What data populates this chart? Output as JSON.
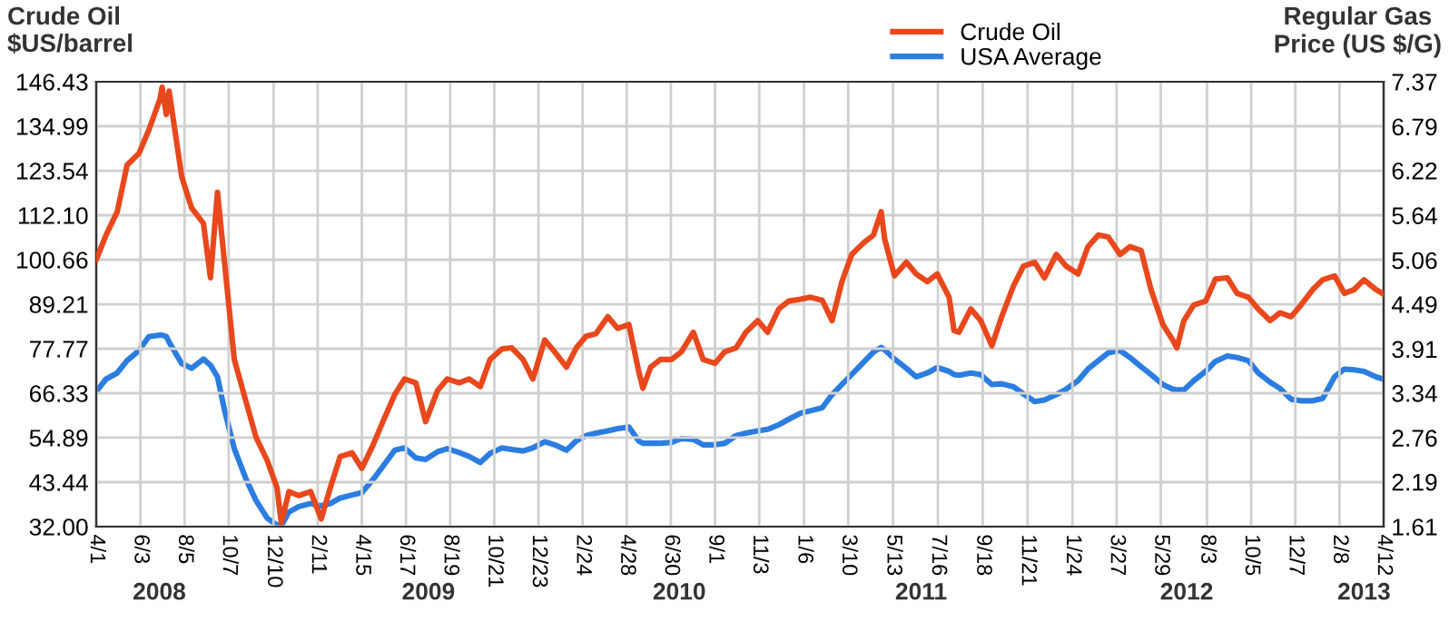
{
  "chart_data": {
    "type": "line",
    "ylabel": "Crude Oil\n$US/barrel",
    "y2label": "Regular Gas\nPrice (US $/G)",
    "x": [
      "2008-04-01",
      "2008-04-15",
      "2008-05-01",
      "2008-05-15",
      "2008-06-01",
      "2008-06-15",
      "2008-07-01",
      "2008-07-04",
      "2008-07-10",
      "2008-07-14",
      "2008-08-01",
      "2008-08-15",
      "2008-09-01",
      "2008-09-11",
      "2008-09-21",
      "2008-10-01",
      "2008-10-15",
      "2008-11-01",
      "2008-11-15",
      "2008-12-01",
      "2008-12-15",
      "2008-12-21",
      "2009-01-01",
      "2009-01-15",
      "2009-02-01",
      "2009-02-16",
      "2009-03-01",
      "2009-03-15",
      "2009-04-01",
      "2009-04-15",
      "2009-05-01",
      "2009-05-15",
      "2009-06-01",
      "2009-06-15",
      "2009-07-01",
      "2009-07-15",
      "2009-08-01",
      "2009-08-15",
      "2009-09-01",
      "2009-09-15",
      "2009-10-01",
      "2009-10-15",
      "2009-11-01",
      "2009-11-15",
      "2009-12-01",
      "2009-12-15",
      "2010-01-01",
      "2010-01-15",
      "2010-02-01",
      "2010-02-15",
      "2010-03-01",
      "2010-03-15",
      "2010-04-01",
      "2010-04-15",
      "2010-05-01",
      "2010-05-15",
      "2010-05-21",
      "2010-06-01",
      "2010-06-15",
      "2010-07-01",
      "2010-07-15",
      "2010-08-01",
      "2010-08-15",
      "2010-09-01",
      "2010-09-15",
      "2010-10-01",
      "2010-10-15",
      "2010-11-01",
      "2010-11-15",
      "2010-12-01",
      "2010-12-15",
      "2011-01-01",
      "2011-01-15",
      "2011-02-01",
      "2011-02-15",
      "2011-03-01",
      "2011-03-15",
      "2011-04-01",
      "2011-04-15",
      "2011-04-26",
      "2011-05-01",
      "2011-05-15",
      "2011-06-01",
      "2011-06-15",
      "2011-07-01",
      "2011-07-15",
      "2011-08-01",
      "2011-08-08",
      "2011-08-15",
      "2011-09-01",
      "2011-09-15",
      "2011-10-01",
      "2011-10-15",
      "2011-11-01",
      "2011-11-15",
      "2011-12-01",
      "2011-12-15",
      "2012-01-01",
      "2012-01-15",
      "2012-02-01",
      "2012-02-15",
      "2012-03-01",
      "2012-03-15",
      "2012-04-01",
      "2012-04-15",
      "2012-05-01",
      "2012-05-15",
      "2012-06-01",
      "2012-06-15",
      "2012-06-21",
      "2012-07-01",
      "2012-07-15",
      "2012-08-01",
      "2012-08-15",
      "2012-09-01",
      "2012-09-15",
      "2012-10-01",
      "2012-10-15",
      "2012-11-01",
      "2012-11-15",
      "2012-12-01",
      "2012-12-15",
      "2013-01-01",
      "2013-01-15",
      "2013-02-01",
      "2013-02-15",
      "2013-03-01",
      "2013-03-15",
      "2013-04-01",
      "2013-04-12"
    ],
    "series": [
      {
        "name": "Crude Oil",
        "color": "#e8481c",
        "values": [
          100.7,
          107,
          113,
          125,
          128,
          134,
          142,
          145,
          138,
          144,
          122,
          114,
          110,
          96,
          118,
          100,
          75,
          64,
          55,
          49,
          42,
          33,
          41,
          40,
          41,
          34,
          42,
          50,
          51,
          47,
          53,
          59,
          66,
          70,
          69,
          59,
          67,
          70,
          69,
          70,
          68,
          75,
          77.7,
          78,
          75,
          70,
          80,
          77,
          73,
          78,
          81,
          81.6,
          86,
          83,
          84,
          72,
          67.6,
          73,
          75,
          75,
          77,
          82,
          75,
          74,
          77,
          78,
          82,
          85,
          82,
          88,
          90,
          90.5,
          91,
          90.2,
          85,
          95,
          102,
          105,
          107,
          113,
          106,
          96.5,
          100,
          97,
          95,
          97,
          91,
          82.4,
          82,
          88,
          85,
          78.5,
          86,
          94,
          99,
          100,
          96,
          102,
          99,
          97,
          104,
          107,
          106.5,
          102,
          104,
          103,
          93,
          84,
          80,
          78,
          85,
          89,
          90,
          95.7,
          96,
          92,
          91,
          88,
          85,
          87,
          86,
          89,
          93,
          95.5,
          96.5,
          92,
          93,
          95.5,
          93,
          91.8
        ]
      },
      {
        "name": "USA Average",
        "color": "#2b7de0",
        "axis": "y2",
        "values": [
          3.36,
          3.52,
          3.6,
          3.76,
          3.89,
          4.07,
          4.09,
          4.09,
          4.07,
          4.0,
          3.72,
          3.66,
          3.78,
          3.7,
          3.55,
          3.12,
          2.62,
          2.22,
          1.95,
          1.72,
          1.63,
          1.62,
          1.8,
          1.87,
          1.91,
          1.88,
          1.91,
          1.98,
          2.02,
          2.05,
          2.22,
          2.39,
          2.6,
          2.63,
          2.5,
          2.48,
          2.58,
          2.62,
          2.57,
          2.52,
          2.44,
          2.56,
          2.63,
          2.61,
          2.59,
          2.63,
          2.71,
          2.67,
          2.6,
          2.72,
          2.79,
          2.82,
          2.85,
          2.88,
          2.9,
          2.72,
          2.69,
          2.69,
          2.69,
          2.7,
          2.75,
          2.74,
          2.67,
          2.67,
          2.69,
          2.79,
          2.82,
          2.85,
          2.87,
          2.93,
          3.0,
          3.08,
          3.11,
          3.15,
          3.32,
          3.45,
          3.58,
          3.74,
          3.87,
          3.93,
          3.9,
          3.78,
          3.66,
          3.55,
          3.6,
          3.67,
          3.62,
          3.58,
          3.57,
          3.6,
          3.58,
          3.45,
          3.46,
          3.42,
          3.33,
          3.23,
          3.25,
          3.32,
          3.39,
          3.5,
          3.65,
          3.76,
          3.86,
          3.89,
          3.8,
          3.68,
          3.58,
          3.45,
          3.39,
          3.38,
          3.38,
          3.5,
          3.62,
          3.75,
          3.82,
          3.8,
          3.76,
          3.6,
          3.48,
          3.4,
          3.26,
          3.24,
          3.24,
          3.27,
          3.55,
          3.65,
          3.64,
          3.62,
          3.55,
          3.52
        ]
      }
    ],
    "xlim": [
      "2008-04-01",
      "2013-04-12"
    ],
    "xticks": [
      {
        "value": "2008-04-01",
        "label": "4/1"
      },
      {
        "value": "2008-06-03",
        "label": "6/3"
      },
      {
        "value": "2008-08-05",
        "label": "8/5"
      },
      {
        "value": "2008-10-07",
        "label": "10/7"
      },
      {
        "value": "2008-12-10",
        "label": "12/10"
      },
      {
        "value": "2009-02-11",
        "label": "2/11"
      },
      {
        "value": "2009-04-15",
        "label": "4/15"
      },
      {
        "value": "2009-06-17",
        "label": "6/17"
      },
      {
        "value": "2009-08-19",
        "label": "8/19"
      },
      {
        "value": "2009-10-21",
        "label": "10/21"
      },
      {
        "value": "2009-12-23",
        "label": "12/23"
      },
      {
        "value": "2010-02-24",
        "label": "2/24"
      },
      {
        "value": "2010-04-28",
        "label": "4/28"
      },
      {
        "value": "2010-06-30",
        "label": "6/30"
      },
      {
        "value": "2010-09-01",
        "label": "9/1"
      },
      {
        "value": "2010-11-03",
        "label": "11/3"
      },
      {
        "value": "2011-01-06",
        "label": "1/6"
      },
      {
        "value": "2011-03-10",
        "label": "3/10"
      },
      {
        "value": "2011-05-13",
        "label": "5/13"
      },
      {
        "value": "2011-07-16",
        "label": "7/16"
      },
      {
        "value": "2011-09-18",
        "label": "9/18"
      },
      {
        "value": "2011-11-21",
        "label": "11/21"
      },
      {
        "value": "2012-01-24",
        "label": "1/24"
      },
      {
        "value": "2012-03-27",
        "label": "3/27"
      },
      {
        "value": "2012-05-29",
        "label": "5/29"
      },
      {
        "value": "2012-08-03",
        "label": "8/3"
      },
      {
        "value": "2012-10-05",
        "label": "10/5"
      },
      {
        "value": "2012-12-07",
        "label": "12/7"
      },
      {
        "value": "2013-02-08",
        "label": "2/8"
      },
      {
        "value": "2013-04-12",
        "label": "4/12"
      }
    ],
    "x2lim": [
      "2008-04-01",
      "2013-04-12"
    ],
    "x2ticks": [
      {
        "value": "2008-06-30",
        "label": "2008"
      },
      {
        "value": "2009-07-19",
        "label": "2009"
      },
      {
        "value": "2010-07-12",
        "label": "2010"
      },
      {
        "value": "2011-06-22",
        "label": "2011"
      },
      {
        "value": "2012-07-05",
        "label": "2012"
      },
      {
        "value": "2013-03-15",
        "label": "2013"
      }
    ],
    "ylim": [
      32.0,
      146.43
    ],
    "yticks": [
      {
        "value": 32.0,
        "label": "32.00"
      },
      {
        "value": 43.44,
        "label": "43.44"
      },
      {
        "value": 54.89,
        "label": "54.89"
      },
      {
        "value": 66.33,
        "label": "66.33"
      },
      {
        "value": 77.77,
        "label": "77.77"
      },
      {
        "value": 89.21,
        "label": "89.21"
      },
      {
        "value": 100.66,
        "label": "100.66"
      },
      {
        "value": 112.1,
        "label": "112.10"
      },
      {
        "value": 123.54,
        "label": "123.54"
      },
      {
        "value": 134.99,
        "label": "134.99"
      },
      {
        "value": 146.43,
        "label": "146.43"
      }
    ],
    "y2lim": [
      1.61,
      7.37
    ],
    "y2ticks": [
      1.61,
      2.19,
      2.76,
      3.34,
      3.91,
      4.49,
      5.06,
      5.64,
      6.22,
      6.79,
      7.37
    ],
    "grid": true,
    "legend": "top",
    "marker": "none",
    "line_style": "solid"
  }
}
